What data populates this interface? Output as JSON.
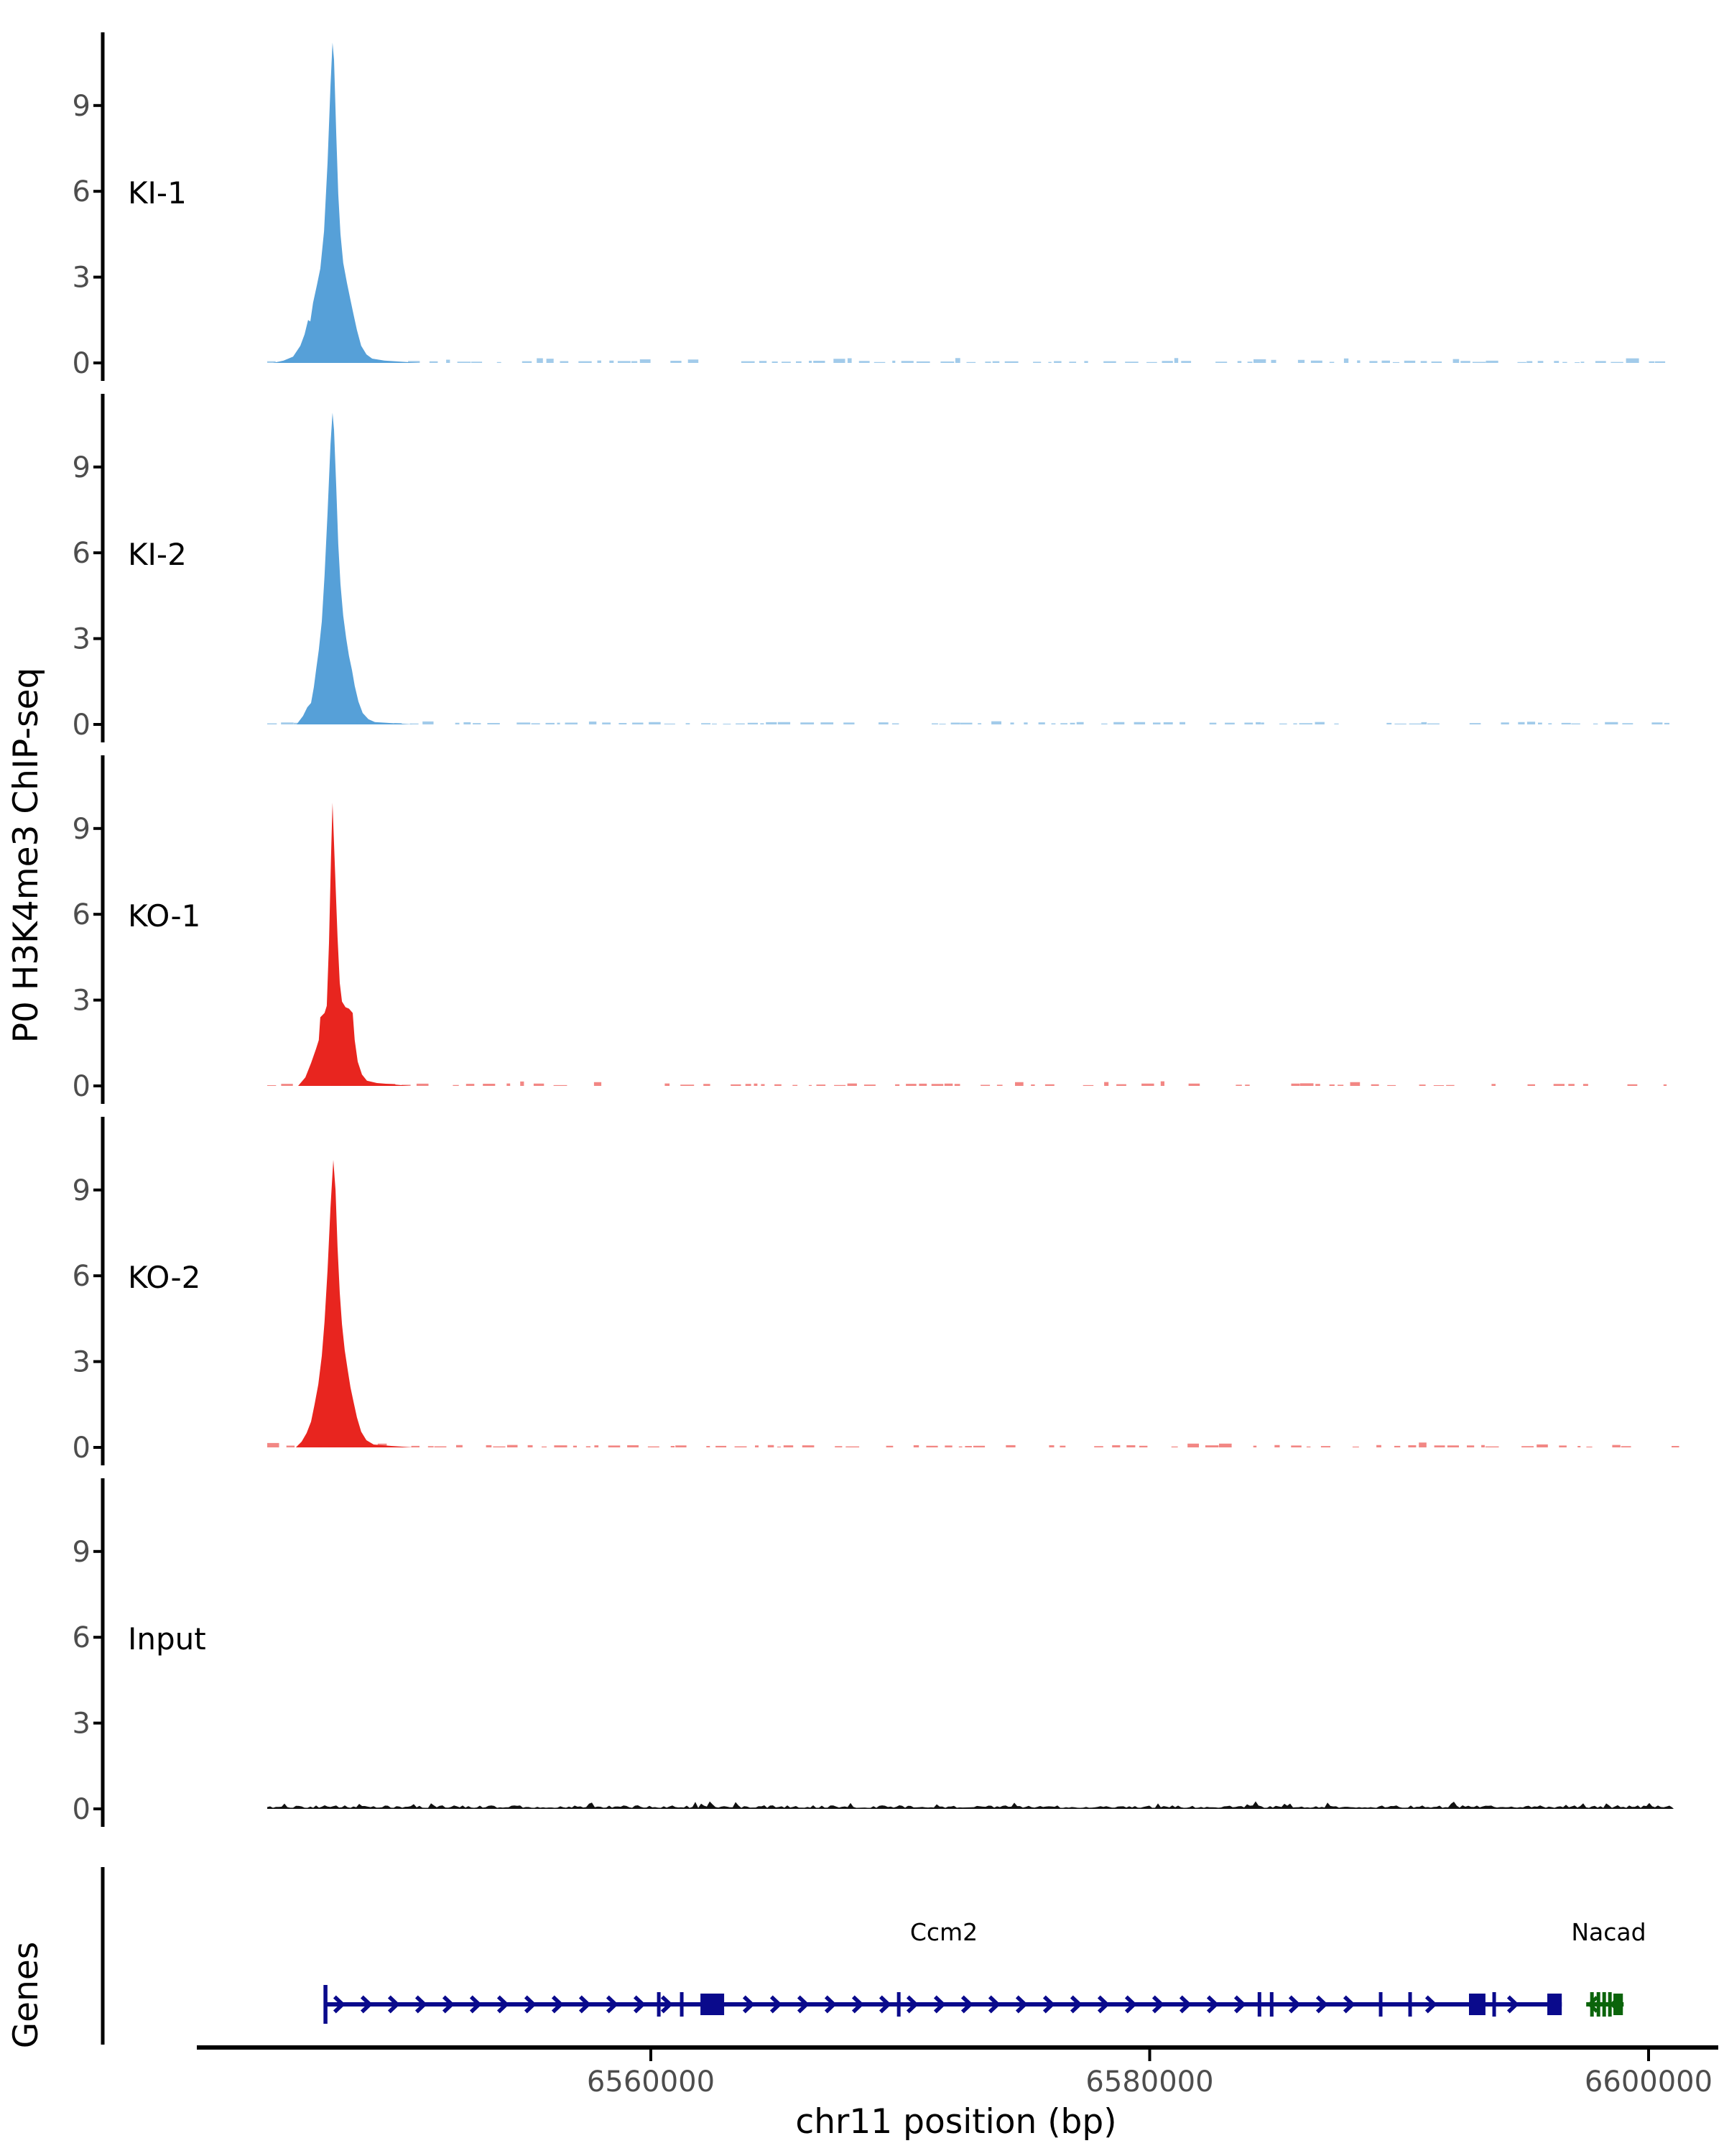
{
  "figure": {
    "y_axis_label": "P0 H3K4me3 ChIP-seq",
    "genes_label": "Genes",
    "x_axis_label": "chr11 position (bp)",
    "axis_color": "#000000",
    "tick_label_color": "#4d4d4d",
    "background": "#ffffff"
  },
  "chart_data": {
    "type": "area",
    "subtype": "genome-browser-chipseq-tracks",
    "chromosome": "chr11",
    "x_axis_range_bp": [
      6541800,
      6602800
    ],
    "data_range_bp": [
      6544560,
      6601010
    ],
    "x_ticks": [
      6560000,
      6580000,
      6600000
    ],
    "y_ticks": [
      0,
      3,
      6,
      9
    ],
    "y_max": 11.6,
    "grid": false,
    "legend": false,
    "tracks": [
      {
        "label": "KI-1",
        "color": "#56a0d8",
        "noise_seed": 11,
        "peak_summit_bp": 6547240,
        "peak_height": 11.2,
        "points": [
          [
            6544850,
            0
          ],
          [
            6545280,
            0.08
          ],
          [
            6545660,
            0.22
          ],
          [
            6545950,
            0.6
          ],
          [
            6546120,
            1.0
          ],
          [
            6546260,
            1.5
          ],
          [
            6546350,
            1.45
          ],
          [
            6546460,
            2.1
          ],
          [
            6546610,
            2.7
          ],
          [
            6546750,
            3.3
          ],
          [
            6546900,
            4.6
          ],
          [
            6547040,
            7.0
          ],
          [
            6547160,
            9.7
          ],
          [
            6547240,
            11.2
          ],
          [
            6547300,
            10.6
          ],
          [
            6547390,
            8.0
          ],
          [
            6547470,
            5.9
          ],
          [
            6547560,
            4.5
          ],
          [
            6547670,
            3.5
          ],
          [
            6547820,
            2.8
          ],
          [
            6547960,
            2.2
          ],
          [
            6548080,
            1.7
          ],
          [
            6548220,
            1.15
          ],
          [
            6548390,
            0.6
          ],
          [
            6548600,
            0.3
          ],
          [
            6548830,
            0.15
          ],
          [
            6549320,
            0.08
          ],
          [
            6550040,
            0.04
          ],
          [
            6550760,
            0
          ]
        ]
      },
      {
        "label": "KI-2",
        "color": "#56a0d8",
        "noise_seed": 22,
        "peak_summit_bp": 6547240,
        "peak_height": 10.9,
        "points": [
          [
            6545800,
            0
          ],
          [
            6546060,
            0.3
          ],
          [
            6546230,
            0.6
          ],
          [
            6546380,
            0.75
          ],
          [
            6546490,
            1.3
          ],
          [
            6546580,
            1.9
          ],
          [
            6546690,
            2.6
          ],
          [
            6546810,
            3.6
          ],
          [
            6546920,
            5.2
          ],
          [
            6547040,
            7.4
          ],
          [
            6547160,
            9.8
          ],
          [
            6547240,
            10.9
          ],
          [
            6547300,
            10.3
          ],
          [
            6547390,
            8.3
          ],
          [
            6547470,
            6.3
          ],
          [
            6547560,
            4.9
          ],
          [
            6547670,
            3.8
          ],
          [
            6547790,
            3.0
          ],
          [
            6547900,
            2.4
          ],
          [
            6548020,
            1.9
          ],
          [
            6548130,
            1.35
          ],
          [
            6548280,
            0.8
          ],
          [
            6548450,
            0.4
          ],
          [
            6548680,
            0.18
          ],
          [
            6548940,
            0.08
          ],
          [
            6549690,
            0.04
          ],
          [
            6550470,
            0
          ]
        ]
      },
      {
        "label": "KO-1",
        "color": "#e8251f",
        "noise_seed": 33,
        "peak_summit_bp": 6547240,
        "peak_height": 9.9,
        "points": [
          [
            6545860,
            0
          ],
          [
            6546150,
            0.3
          ],
          [
            6546380,
            0.8
          ],
          [
            6546580,
            1.3
          ],
          [
            6546690,
            1.6
          ],
          [
            6546750,
            2.4
          ],
          [
            6546920,
            2.55
          ],
          [
            6547010,
            2.8
          ],
          [
            6547100,
            5.0
          ],
          [
            6547180,
            8.0
          ],
          [
            6547240,
            9.9
          ],
          [
            6547330,
            7.8
          ],
          [
            6547440,
            5.2
          ],
          [
            6547530,
            3.6
          ],
          [
            6547620,
            2.95
          ],
          [
            6547760,
            2.75
          ],
          [
            6547900,
            2.7
          ],
          [
            6548050,
            2.55
          ],
          [
            6548130,
            1.6
          ],
          [
            6548250,
            0.85
          ],
          [
            6548420,
            0.4
          ],
          [
            6548620,
            0.18
          ],
          [
            6549020,
            0.1
          ],
          [
            6549600,
            0.06
          ],
          [
            6550320,
            0
          ]
        ]
      },
      {
        "label": "KO-2",
        "color": "#e8251f",
        "noise_seed": 44,
        "peak_summit_bp": 6547270,
        "peak_height": 10.05,
        "points": [
          [
            6545770,
            0
          ],
          [
            6546000,
            0.2
          ],
          [
            6546200,
            0.5
          ],
          [
            6546380,
            0.9
          ],
          [
            6546520,
            1.5
          ],
          [
            6546670,
            2.2
          ],
          [
            6546810,
            3.2
          ],
          [
            6546920,
            4.4
          ],
          [
            6547040,
            6.2
          ],
          [
            6547160,
            8.4
          ],
          [
            6547270,
            10.05
          ],
          [
            6547360,
            9.0
          ],
          [
            6547440,
            7.0
          ],
          [
            6547530,
            5.4
          ],
          [
            6547620,
            4.3
          ],
          [
            6547730,
            3.4
          ],
          [
            6547850,
            2.7
          ],
          [
            6547960,
            2.1
          ],
          [
            6548080,
            1.6
          ],
          [
            6548220,
            1.05
          ],
          [
            6548390,
            0.55
          ],
          [
            6548600,
            0.25
          ],
          [
            6548890,
            0.1
          ],
          [
            6549600,
            0.05
          ],
          [
            6550470,
            0
          ]
        ]
      },
      {
        "label": "Input",
        "color": "#000000",
        "noise_seed": 55,
        "peak_summit_bp": null,
        "peak_height": 0.2,
        "points": []
      }
    ],
    "genes": [
      {
        "name": "Ccm2",
        "strand": "+",
        "color": "#0a0a8c",
        "start_bp": 6546950,
        "end_bp": 6596520,
        "label_bp": 6571750,
        "thin_exons_bp": [
          6560320,
          6561240,
          6569940,
          6584400,
          6584890,
          6589260,
          6590440,
          6593810
        ],
        "thick_exons_bp": [
          [
            6561990,
            6562940
          ],
          [
            6592800,
            6593460
          ],
          [
            6595940,
            6596520
          ]
        ]
      },
      {
        "name": "Nacad",
        "strand": "-",
        "color": "#0b640b",
        "start_bp": 6597500,
        "end_bp": 6599000,
        "label_bp": 6598400,
        "thin_exons_bp": [
          6597730,
          6597990,
          6598220,
          6598450
        ],
        "thick_exons_bp": [
          [
            6598590,
            6598970
          ]
        ]
      }
    ]
  }
}
